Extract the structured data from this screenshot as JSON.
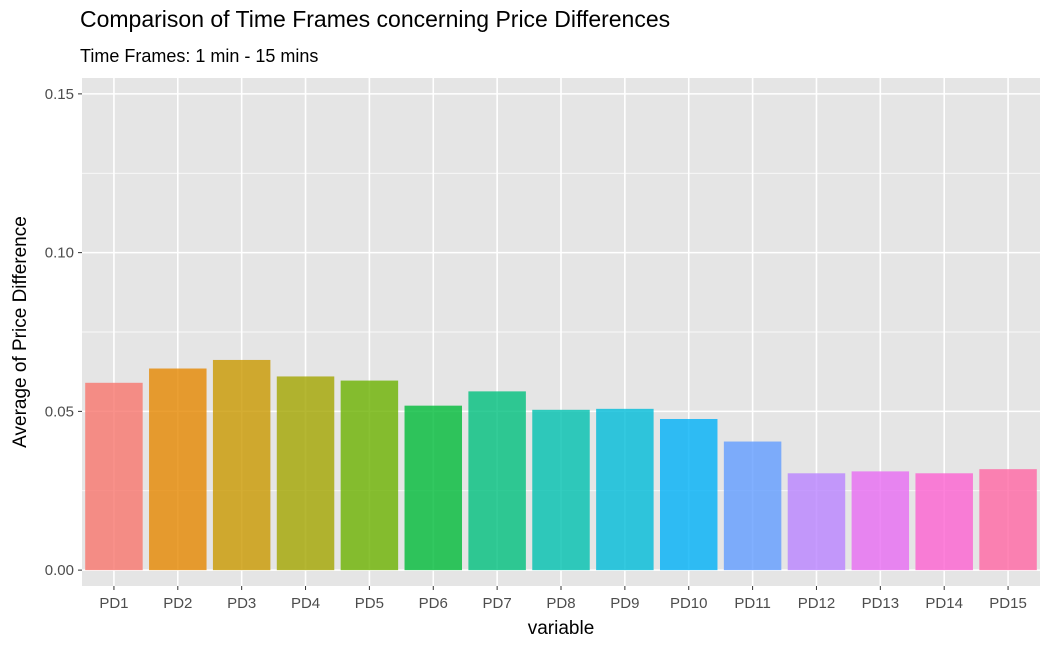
{
  "chart_data": {
    "type": "bar",
    "title": "Comparison of Time Frames concerning Price Differences",
    "subtitle": "Time Frames: 1 min - 15 mins",
    "xlabel": "variable",
    "ylabel": "Average of Price Difference",
    "ylim": [
      -0.005,
      0.155
    ],
    "yticks": [
      "0.00",
      "0.05",
      "0.10",
      "0.15"
    ],
    "grid": true,
    "legend": "none",
    "categories": [
      "PD1",
      "PD2",
      "PD3",
      "PD4",
      "PD5",
      "PD6",
      "PD7",
      "PD8",
      "PD9",
      "PD10",
      "PD11",
      "PD12",
      "PD13",
      "PD14",
      "PD15"
    ],
    "values": [
      0.059,
      0.0635,
      0.0662,
      0.061,
      0.0597,
      0.0518,
      0.0563,
      0.0505,
      0.0508,
      0.0476,
      0.0405,
      0.0305,
      0.0311,
      0.0305,
      0.0318
    ],
    "colors": [
      "#F8766D",
      "#E58700",
      "#C99800",
      "#A3A500",
      "#6BB100",
      "#00BA38",
      "#00BF7D",
      "#00C0AF",
      "#00BCD8",
      "#00B0F6",
      "#619CFF",
      "#B983FF",
      "#E76BF3",
      "#FD61D1",
      "#FF67A4"
    ],
    "panel_background": "#E5E5E5",
    "grid_color": "#FFFFFF",
    "bar_opacity": 0.8
  }
}
